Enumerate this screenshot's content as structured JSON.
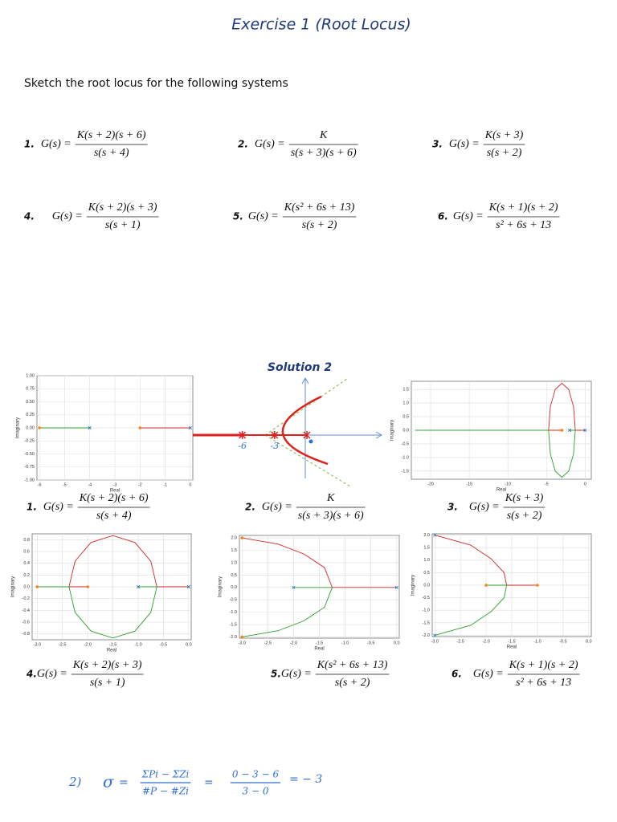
{
  "title": "Exercise 1 (Root Locus)",
  "instruction": "Sketch the root locus for the following systems",
  "problems": [
    {
      "number": "1.",
      "lhs": "G(s) =",
      "numerator": "K(s + 2)(s + 6)",
      "denominator": "s(s + 4)"
    },
    {
      "number": "2.",
      "lhs": "G(s) =",
      "numerator": "K",
      "denominator": "s(s + 3)(s + 6)"
    },
    {
      "number": "3.",
      "lhs": "G(s) =",
      "numerator": "K(s + 3)",
      "denominator": "s(s + 2)"
    },
    {
      "number": "4.",
      "lhs": "G(s) =",
      "numerator": "K(s + 2)(s + 3)",
      "denominator": "s(s + 1)"
    },
    {
      "number": "5.",
      "lhs": "G(s) =",
      "numerator": "K(s² + 6s + 13)",
      "denominator": "s(s + 2)"
    },
    {
      "number": "6.",
      "lhs": "G(s) =",
      "numerator": "K(s + 1)(s + 2)",
      "denominator": "s² + 6s + 13"
    }
  ],
  "solution_title": "Solution 2",
  "solutions": [
    {
      "number": "1.",
      "lhs": "G(s) =",
      "numerator": "K(s + 2)(s + 6)",
      "denominator": "s(s + 4)"
    },
    {
      "number": "2.",
      "lhs": "G(s) =",
      "numerator": "K",
      "denominator": "s(s + 3)(s + 6)"
    },
    {
      "number": "3.",
      "lhs": "G(s) =",
      "numerator": "K(s + 3)",
      "denominator": "s(s + 2)"
    },
    {
      "number": "4.",
      "lhs": "G(s) =",
      "numerator": "K(s + 2)(s + 3)",
      "denominator": "s(s + 1)"
    },
    {
      "number": "5.",
      "lhs": "G(s) =",
      "numerator": "K(s² + 6s + 13)",
      "denominator": "s(s + 2)"
    },
    {
      "number": "6.",
      "lhs": "G(s) =",
      "numerator": "K(s + 1)(s + 2)",
      "denominator": "s² + 6s + 13"
    }
  ],
  "chart_data": [
    {
      "type": "line",
      "xlabel": "Real",
      "ylabel": "Imaginary",
      "xlim": [
        -6.1,
        0.1
      ],
      "ylim": [
        -1,
        1
      ],
      "xticks": [
        -6,
        -5,
        -4,
        -3,
        -2,
        -1,
        0
      ],
      "yticks": [
        {
          "value": 1,
          "label": "1.00"
        },
        0.75,
        {
          "value": 0.5,
          "label": "0.50"
        },
        0.25,
        {
          "value": 0,
          "label": "0.00"
        },
        -0.25,
        {
          "value": -0.5,
          "label": "-0.50"
        },
        -0.75,
        {
          "value": -1,
          "label": "-1.00"
        }
      ],
      "series": [
        {
          "color": "#2ca02c",
          "x": [
            -6,
            -4
          ],
          "y": [
            0,
            0
          ]
        },
        {
          "color": "#d62728",
          "x": [
            -2,
            0
          ],
          "y": [
            0,
            0
          ]
        }
      ],
      "zeros": {
        "x": [
          -6,
          -2
        ],
        "y": [
          0,
          0
        ]
      },
      "poles": {
        "x": [
          -4,
          0
        ],
        "y": [
          0,
          0
        ]
      }
    },
    {
      "type": "line",
      "xlabel": "Real",
      "ylabel": "Imaginary",
      "xlim": [
        -22.5,
        0.8
      ],
      "ylim": [
        -1.8,
        1.8
      ],
      "xticks": [
        -20,
        -15,
        -10,
        -5,
        0
      ],
      "yticks": [
        1.5,
        {
          "value": 1,
          "label": "1.0"
        },
        0.5,
        {
          "value": 0,
          "label": "0.0"
        },
        -0.5,
        {
          "value": -1,
          "label": "-1.0"
        },
        -1.5
      ],
      "series": [
        {
          "color": "#d62728",
          "x": [
            0,
            -1.27,
            -1.5,
            -2.13,
            -3,
            -3.87,
            -4.5,
            -4.73,
            -3
          ],
          "y": [
            0,
            0,
            0.87,
            1.5,
            1.73,
            1.5,
            0.87,
            0,
            0
          ]
        },
        {
          "color": "#2ca02c",
          "x": [
            -2,
            -1.27,
            -1.5,
            -2.13,
            -3,
            -3.87,
            -4.5,
            -4.73,
            -22
          ],
          "y": [
            0,
            0,
            -0.87,
            -1.5,
            -1.73,
            -1.5,
            -0.87,
            0,
            0
          ]
        }
      ],
      "zeros": {
        "x": [
          -3
        ],
        "y": [
          0
        ]
      },
      "poles": {
        "x": [
          -2,
          0
        ],
        "y": [
          0,
          0
        ]
      }
    },
    {
      "type": "line",
      "xlabel": "Real",
      "ylabel": "Imaginary",
      "xlim": [
        -3.1,
        0.05
      ],
      "ylim": [
        -0.9,
        0.9
      ],
      "xticks": [
        {
          "value": -3,
          "label": "-3.0"
        },
        -2.5,
        {
          "value": -2,
          "label": "-2.0"
        },
        -1.5,
        {
          "value": -1,
          "label": "-1.0"
        },
        -0.5,
        {
          "value": 0,
          "label": "0.0"
        }
      ],
      "yticks": [
        0.8,
        0.6,
        0.4,
        0.2,
        {
          "value": 0,
          "label": "0.0"
        },
        -0.2,
        -0.4,
        -0.6,
        -0.8
      ],
      "series": [
        {
          "color": "#d62728",
          "x": [
            0,
            -0.63,
            -0.75,
            -1.065,
            -1.5,
            -1.935,
            -2.25,
            -2.37,
            -2
          ],
          "y": [
            0,
            0,
            0.435,
            0.753,
            0.87,
            0.753,
            0.435,
            0,
            0
          ]
        },
        {
          "color": "#2ca02c",
          "x": [
            -1,
            -0.63,
            -0.75,
            -1.065,
            -1.5,
            -1.935,
            -2.25,
            -2.37,
            -3
          ],
          "y": [
            0,
            0,
            -0.435,
            -0.753,
            -0.87,
            -0.753,
            -0.435,
            0,
            0
          ]
        }
      ],
      "zeros": {
        "x": [
          -3,
          -2
        ],
        "y": [
          0,
          0
        ]
      },
      "poles": {
        "x": [
          -1,
          0
        ],
        "y": [
          0,
          0
        ]
      }
    },
    {
      "type": "line",
      "xlabel": "Real",
      "ylabel": "Imaginary",
      "xlim": [
        -3.05,
        0.05
      ],
      "ylim": [
        -2.05,
        2.1
      ],
      "xticks": [
        {
          "value": -3,
          "label": "-3.0"
        },
        -2.5,
        {
          "value": -2,
          "label": "-2.0"
        },
        -1.5,
        {
          "value": -1,
          "label": "-1.0"
        },
        -0.5,
        {
          "value": 0,
          "label": "0.0"
        }
      ],
      "yticks": [
        {
          "value": 2,
          "label": "2.0"
        },
        1.5,
        {
          "value": 1,
          "label": "1.0"
        },
        0.5,
        {
          "value": 0,
          "label": "0.0"
        },
        -0.5,
        {
          "value": -1,
          "label": "-1.0"
        },
        -1.5,
        {
          "value": -2,
          "label": "-2.0"
        }
      ],
      "series": [
        {
          "color": "#d62728",
          "x": [
            0,
            -1.25,
            -1.4,
            -1.8,
            -2.3,
            -3
          ],
          "y": [
            0,
            0,
            0.8,
            1.35,
            1.75,
            2
          ]
        },
        {
          "color": "#2ca02c",
          "x": [
            -2,
            -1.25,
            -1.4,
            -1.8,
            -2.3,
            -3
          ],
          "y": [
            0,
            0,
            -0.8,
            -1.35,
            -1.75,
            -2
          ]
        }
      ],
      "zeros": {
        "x": [
          -3,
          -3
        ],
        "y": [
          2,
          -2
        ]
      },
      "poles": {
        "x": [
          -2,
          0
        ],
        "y": [
          0,
          0
        ]
      }
    },
    {
      "type": "line",
      "xlabel": "Real",
      "ylabel": "Imaginary",
      "xlim": [
        -3.05,
        0.05
      ],
      "ylim": [
        -2.05,
        2.05
      ],
      "xticks": [
        {
          "value": -3,
          "label": "-3.0"
        },
        -2.5,
        {
          "value": -2,
          "label": "-2.0"
        },
        -1.5,
        {
          "value": -1,
          "label": "-1.0"
        },
        -0.5,
        {
          "value": 0,
          "label": "0.0"
        }
      ],
      "yticks": [
        {
          "value": 2,
          "label": "2.0"
        },
        1.5,
        {
          "value": 1,
          "label": "1.0"
        },
        0.5,
        {
          "value": 0,
          "label": "0.0"
        },
        -0.5,
        {
          "value": -1,
          "label": "-1.0"
        },
        -1.5,
        {
          "value": -2,
          "label": "-2.0"
        }
      ],
      "series": [
        {
          "color": "#d62728",
          "x": [
            -3,
            -2.3,
            -1.9,
            -1.65,
            -1.6,
            -1
          ],
          "y": [
            2,
            1.6,
            1.05,
            0.5,
            0,
            0
          ]
        },
        {
          "color": "#2ca02c",
          "x": [
            -3,
            -2.3,
            -1.9,
            -1.65,
            -1.6,
            -2
          ],
          "y": [
            -2,
            -1.6,
            -1.05,
            -0.5,
            0,
            0
          ]
        }
      ],
      "zeros": {
        "x": [
          -2,
          -1
        ],
        "y": [
          0,
          0
        ]
      },
      "poles": {
        "x": [
          -3,
          -3
        ],
        "y": [
          2,
          -2
        ]
      }
    }
  ],
  "sketch": {
    "poles": [
      -6,
      -3,
      0
    ],
    "labels": [
      "-6",
      "-3"
    ]
  },
  "note": {
    "label": "2)",
    "symbol": "σ",
    "eq1": "=",
    "num1": "ΣPi − ΣZi",
    "den1": "#P − #Zi",
    "eq2": "=",
    "num2": "0 − 3 − 6",
    "den2": "3 − 0",
    "result": "= − 3"
  }
}
